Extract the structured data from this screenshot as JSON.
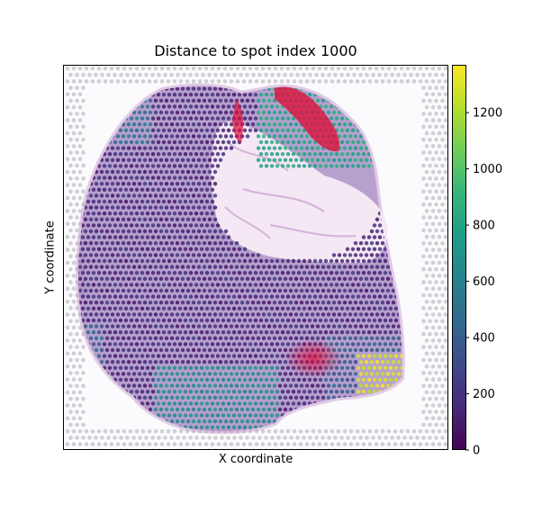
{
  "chart_data": {
    "type": "heatmap",
    "title": "Distance to spot index 1000",
    "xlabel": "X coordinate",
    "ylabel": "Y coordinate",
    "x_ticks": [],
    "y_ticks": [],
    "colorbar": {
      "colormap": "viridis",
      "range": [
        0,
        1370
      ],
      "ticks": [
        "0",
        "200",
        "400",
        "600",
        "800",
        "1000",
        "1200"
      ],
      "tick_values": [
        0,
        200,
        400,
        600,
        800,
        1000,
        1200
      ]
    },
    "reference_spot_index": 1000,
    "background": "H&E tissue image with spot grid",
    "value_regions": [
      {
        "region": "central-left tissue",
        "approx_distance": 150
      },
      {
        "region": "upper-left edge",
        "approx_distance": 500
      },
      {
        "region": "bottom-center lobe",
        "approx_distance": 650
      },
      {
        "region": "upper-right lobe",
        "approx_distance": 800
      },
      {
        "region": "right tip",
        "approx_distance": 1300
      }
    ]
  },
  "colors": {
    "viridis": [
      "#440154",
      "#482878",
      "#3e4a89",
      "#31688e",
      "#26828e",
      "#1f9e89",
      "#35b779",
      "#6ece58",
      "#b5de2b",
      "#fde725"
    ],
    "tissue_purple": "#8a5aa6",
    "tissue_pink": "#e8cfe6",
    "tissue_red": "#e0103c",
    "grid_dot": "#cfcfd4"
  }
}
